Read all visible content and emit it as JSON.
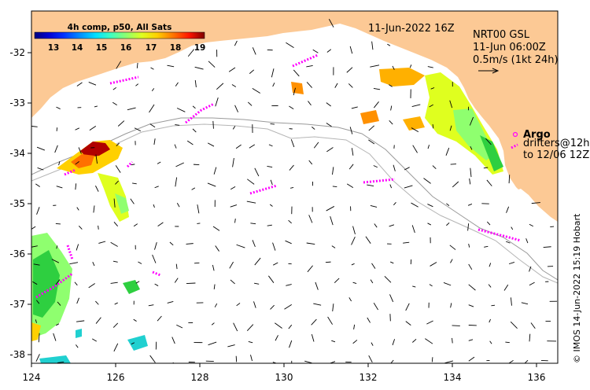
{
  "map": {
    "date_label": "11-Jun-2022 16Z",
    "land_color": "#fcc995",
    "sea_color": "#ffffff",
    "x_ticks": [
      "124",
      "126",
      "128",
      "130",
      "132",
      "134",
      "136"
    ],
    "y_ticks": [
      "-32",
      "-33",
      "-34",
      "-35",
      "-36",
      "-37",
      "-38"
    ]
  },
  "colorbar": {
    "title": "4h comp, p50, All Sats",
    "ticks": [
      "13",
      "14",
      "15",
      "16",
      "17",
      "18",
      "19"
    ],
    "colors": [
      "#00007f",
      "#0000d0",
      "#0030ff",
      "#0090ff",
      "#00e0ff",
      "#40ffbf",
      "#8fff6f",
      "#dfff1f",
      "#ffd000",
      "#ff7000",
      "#ff1400",
      "#b00000",
      "#7f0000"
    ]
  },
  "current_legend": {
    "line1": "NRT00 GSL",
    "line2": "11-Jun 06:00Z",
    "line3": "0.5m/s (1kt 24h)"
  },
  "argo": {
    "title": "Argo",
    "line2": "drifters@12h",
    "line3": "to 12/06 12Z",
    "marker_color": "#ff00ff"
  },
  "credit": "© IMOS 14-Jun-2022 15:19 Hobart"
}
